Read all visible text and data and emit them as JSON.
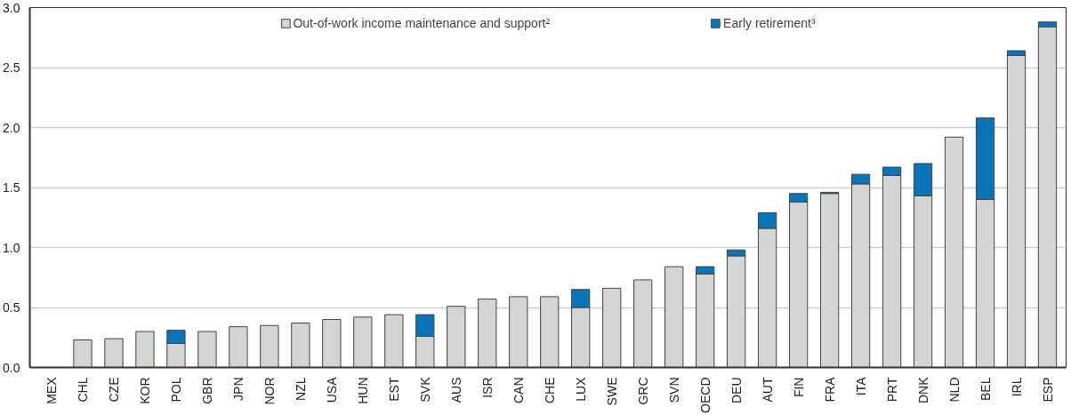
{
  "chart_data": {
    "type": "bar",
    "stacked": true,
    "categories": [
      "MEX",
      "CHL",
      "CZE",
      "KOR",
      "POL",
      "GBR",
      "JPN",
      "NOR",
      "NZL",
      "USA",
      "HUN",
      "EST",
      "SVK",
      "AUS",
      "ISR",
      "CAN",
      "CHE",
      "LUX",
      "SWE",
      "GRC",
      "SVN",
      "OECD",
      "DEU",
      "AUT",
      "FIN",
      "FRA",
      "ITA",
      "PRT",
      "DNK",
      "NLD",
      "BEL",
      "IRL",
      "ESP"
    ],
    "series": [
      {
        "name": "Out-of-work income maintenance and support²",
        "color": "#d3d4d6",
        "values": [
          0,
          0.23,
          0.24,
          0.3,
          0.2,
          0.3,
          0.34,
          0.35,
          0.37,
          0.4,
          0.42,
          0.44,
          0.26,
          0.51,
          0.57,
          0.59,
          0.59,
          0.5,
          0.66,
          0.73,
          0.84,
          0.78,
          0.93,
          1.16,
          1.38,
          1.45,
          1.53,
          1.6,
          1.43,
          1.92,
          1.4,
          2.6,
          2.84
        ]
      },
      {
        "name": "Early retirement³",
        "color": "#0b74b9",
        "values": [
          0,
          0,
          0,
          0,
          0.11,
          0,
          0,
          0,
          0,
          0,
          0,
          0,
          0.18,
          0,
          0,
          0,
          0,
          0.15,
          0,
          0,
          0,
          0.06,
          0.05,
          0.13,
          0.07,
          0.01,
          0.08,
          0.07,
          0.27,
          0,
          0.68,
          0.04,
          0.04
        ]
      }
    ],
    "ylim": [
      0,
      3.0
    ],
    "yticks": [
      {
        "value": 0,
        "label": "0.0"
      },
      0.5,
      {
        "value": 1,
        "label": "1.0"
      },
      1.5,
      {
        "value": 2,
        "label": "2.0"
      },
      2.5,
      {
        "value": 3,
        "label": "3.0"
      }
    ],
    "grid": "y",
    "legend": "top"
  }
}
